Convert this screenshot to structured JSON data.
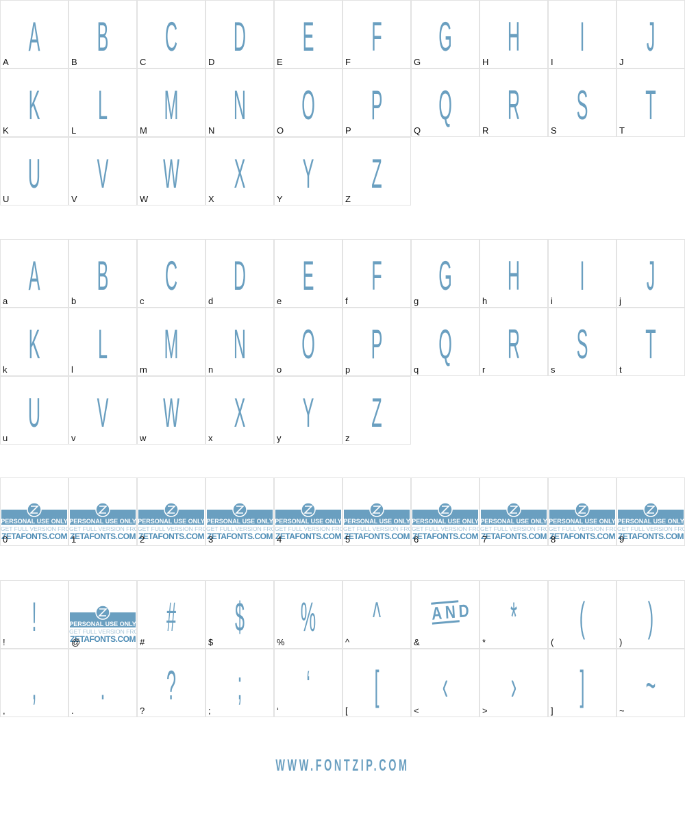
{
  "sections": [
    {
      "cells": [
        {
          "glyph": "A",
          "label": "A"
        },
        {
          "glyph": "B",
          "label": "B"
        },
        {
          "glyph": "C",
          "label": "C"
        },
        {
          "glyph": "D",
          "label": "D"
        },
        {
          "glyph": "E",
          "label": "E"
        },
        {
          "glyph": "F",
          "label": "F"
        },
        {
          "glyph": "G",
          "label": "G"
        },
        {
          "glyph": "H",
          "label": "H"
        },
        {
          "glyph": "I",
          "label": "I"
        },
        {
          "glyph": "J",
          "label": "J"
        },
        {
          "glyph": "K",
          "label": "K"
        },
        {
          "glyph": "L",
          "label": "L"
        },
        {
          "glyph": "M",
          "label": "M"
        },
        {
          "glyph": "N",
          "label": "N"
        },
        {
          "glyph": "O",
          "label": "O"
        },
        {
          "glyph": "P",
          "label": "P"
        },
        {
          "glyph": "Q",
          "label": "Q"
        },
        {
          "glyph": "R",
          "label": "R"
        },
        {
          "glyph": "S",
          "label": "S"
        },
        {
          "glyph": "T",
          "label": "T"
        },
        {
          "glyph": "U",
          "label": "U"
        },
        {
          "glyph": "V",
          "label": "V"
        },
        {
          "glyph": "W",
          "label": "W"
        },
        {
          "glyph": "X",
          "label": "X"
        },
        {
          "glyph": "Y",
          "label": "Y"
        },
        {
          "glyph": "Z",
          "label": "Z"
        }
      ]
    },
    {
      "cells": [
        {
          "glyph": "A",
          "label": "a"
        },
        {
          "glyph": "B",
          "label": "b"
        },
        {
          "glyph": "C",
          "label": "c"
        },
        {
          "glyph": "D",
          "label": "d"
        },
        {
          "glyph": "E",
          "label": "e"
        },
        {
          "glyph": "F",
          "label": "f"
        },
        {
          "glyph": "G",
          "label": "g"
        },
        {
          "glyph": "H",
          "label": "h"
        },
        {
          "glyph": "I",
          "label": "i"
        },
        {
          "glyph": "J",
          "label": "j"
        },
        {
          "glyph": "K",
          "label": "k"
        },
        {
          "glyph": "L",
          "label": "l"
        },
        {
          "glyph": "M",
          "label": "m"
        },
        {
          "glyph": "N",
          "label": "n"
        },
        {
          "glyph": "O",
          "label": "o"
        },
        {
          "glyph": "P",
          "label": "p"
        },
        {
          "glyph": "Q",
          "label": "q"
        },
        {
          "glyph": "R",
          "label": "r"
        },
        {
          "glyph": "S",
          "label": "s"
        },
        {
          "glyph": "T",
          "label": "t"
        },
        {
          "glyph": "U",
          "label": "u"
        },
        {
          "glyph": "V",
          "label": "v"
        },
        {
          "glyph": "W",
          "label": "w"
        },
        {
          "glyph": "X",
          "label": "x"
        },
        {
          "glyph": "Y",
          "label": "y"
        },
        {
          "glyph": "Z",
          "label": "z"
        }
      ]
    },
    {
      "cells": [
        {
          "watermark": true,
          "label": "0"
        },
        {
          "watermark": true,
          "label": "1"
        },
        {
          "watermark": true,
          "label": "2"
        },
        {
          "watermark": true,
          "label": "3"
        },
        {
          "watermark": true,
          "label": "4"
        },
        {
          "watermark": true,
          "label": "5"
        },
        {
          "watermark": true,
          "label": "6"
        },
        {
          "watermark": true,
          "label": "7"
        },
        {
          "watermark": true,
          "label": "8"
        },
        {
          "watermark": true,
          "label": "9"
        }
      ]
    },
    {
      "cells": [
        {
          "glyph": "!",
          "label": "!"
        },
        {
          "watermark": true,
          "label": "@"
        },
        {
          "glyph": "#",
          "label": "#"
        },
        {
          "glyph": "$",
          "label": "$"
        },
        {
          "glyph": "%",
          "label": "%"
        },
        {
          "glyph": "^",
          "label": "^"
        },
        {
          "glyph": "AND",
          "label": "&"
        },
        {
          "glyph": "*",
          "label": "*"
        },
        {
          "glyph": "(",
          "label": "("
        },
        {
          "glyph": ")",
          "label": ")"
        },
        {
          "glyph": ",",
          "label": ","
        },
        {
          "glyph": ".",
          "label": "."
        },
        {
          "glyph": "?",
          "label": "?"
        },
        {
          "glyph": ";",
          "label": ";"
        },
        {
          "glyph": "‘",
          "label": "‘"
        },
        {
          "glyph": "[",
          "label": "["
        },
        {
          "glyph": "‹",
          "label": "<"
        },
        {
          "glyph": "›",
          "label": ">"
        },
        {
          "glyph": "]",
          "label": "]"
        },
        {
          "glyph": "~",
          "label": "~"
        }
      ]
    }
  ],
  "watermark": {
    "notice": "PERSONAL USE ONLY",
    "offer": "GET FULL VERSION FROM",
    "site": "ZETAFONTS.COM"
  },
  "footer": "WWW.FONTZIP.COM"
}
